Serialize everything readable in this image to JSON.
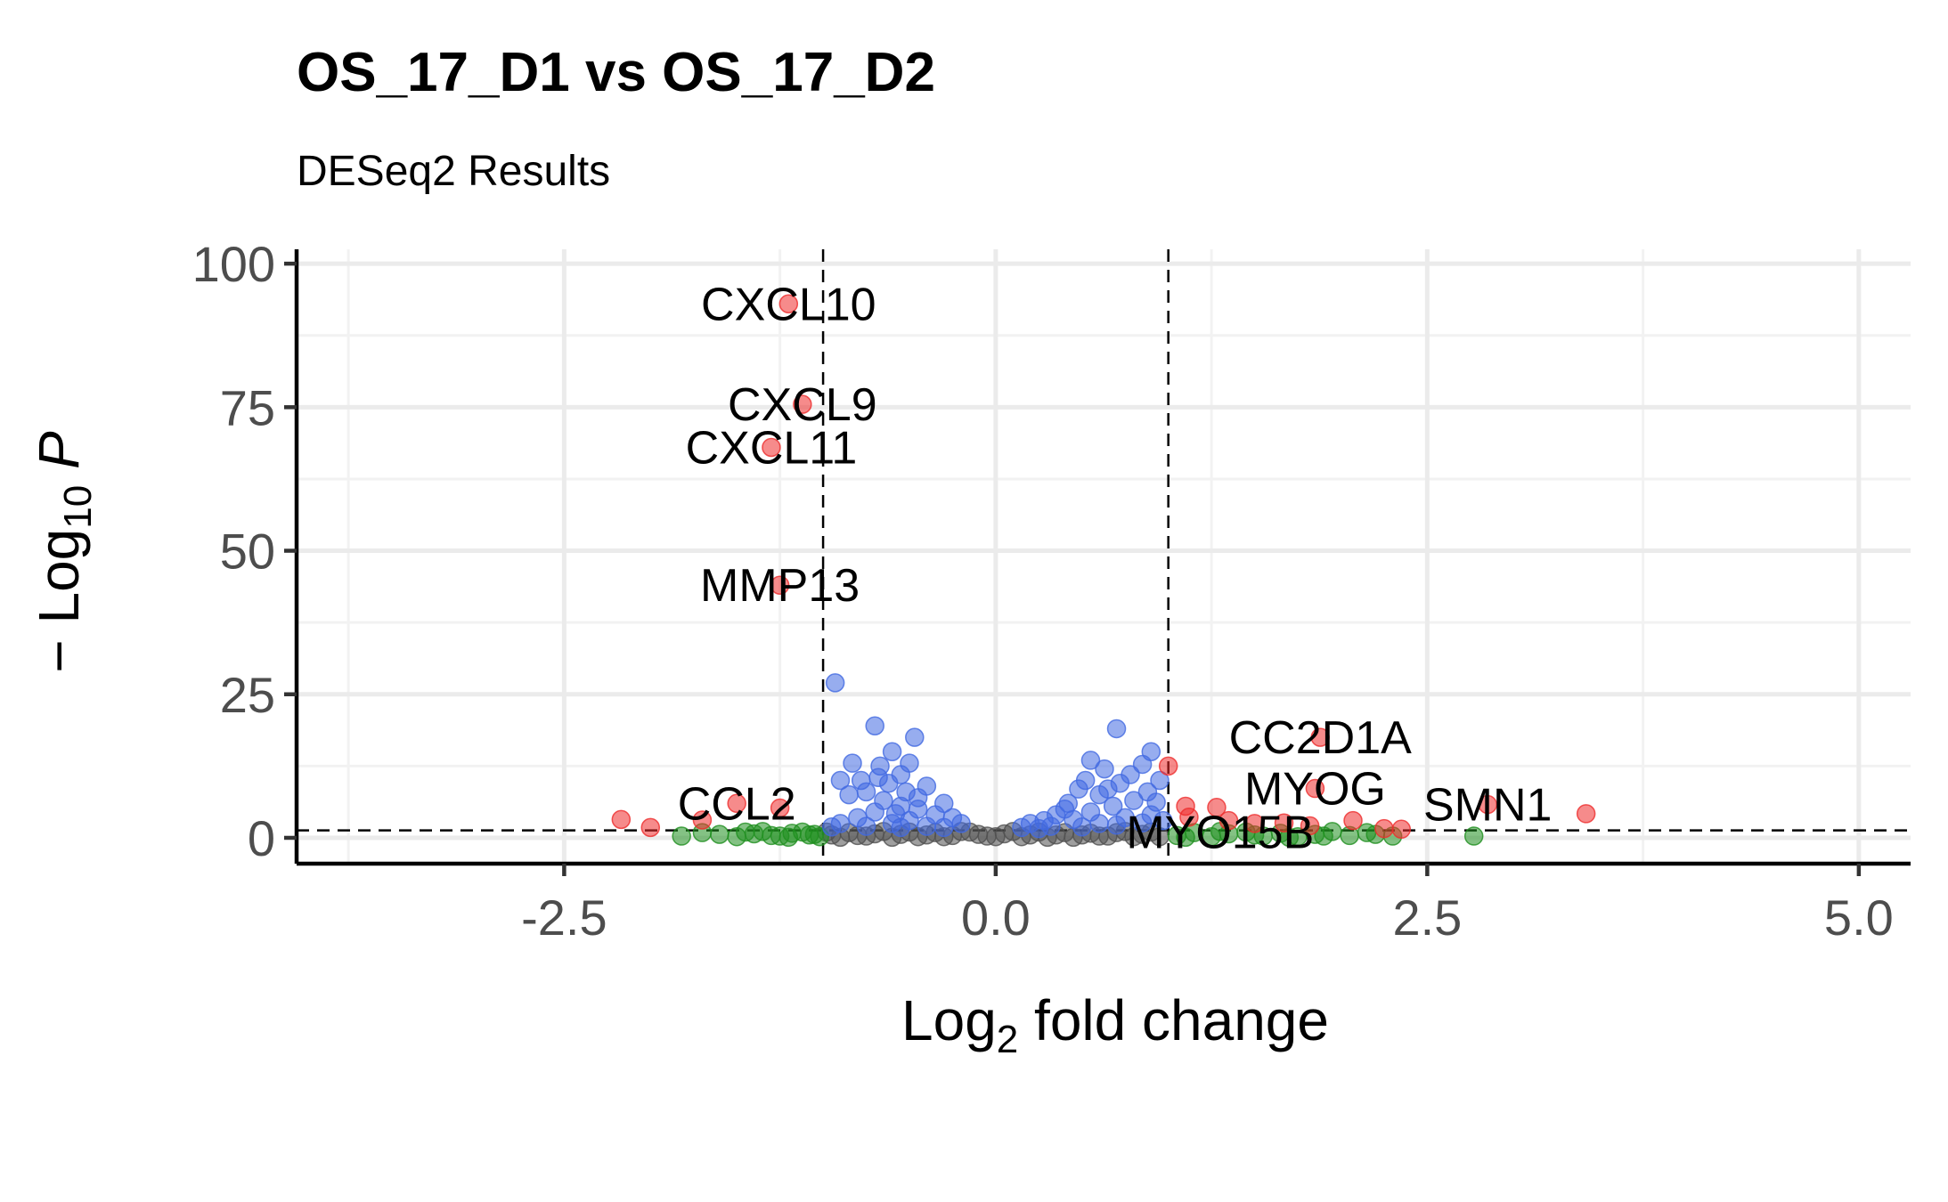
{
  "chart_data": {
    "type": "scatter",
    "title": "OS_17_D1 vs OS_17_D2",
    "subtitle": "DESeq2 Results",
    "xlabel": {
      "main": "Log",
      "sub": "2",
      "rest": " fold change"
    },
    "ylabel": {
      "prefix": "− Log",
      "sub": "10",
      "italic": " P"
    },
    "xlim": [
      -4.05,
      5.3
    ],
    "ylim": [
      -4.5,
      102.5
    ],
    "x_ticks": [
      -2.5,
      0.0,
      2.5,
      5.0
    ],
    "x_tick_labels": [
      "-2.5",
      "0.0",
      "2.5",
      "5.0"
    ],
    "x_minor": [
      -3.75,
      -1.25,
      1.25,
      3.75
    ],
    "y_ticks": [
      0,
      25,
      50,
      75,
      100
    ],
    "y_tick_labels": [
      "0",
      "25",
      "50",
      "75",
      "100"
    ],
    "y_minor": [
      12.5,
      37.5,
      62.5,
      87.5
    ],
    "fc_cutoffs": [
      -1,
      1
    ],
    "p_cutoff": 1.3,
    "grid": true,
    "legend": "none",
    "colors": {
      "NS": "#505050",
      "log2FC": "#1f8f1f",
      "p-value": "#4169e1",
      "p-value and log2FC": "#ee2c2c"
    },
    "series": [
      {
        "key": "p-value and log2FC",
        "points": [
          [
            -1.2,
            93
          ],
          [
            -1.12,
            75.5
          ],
          [
            -1.3,
            68
          ],
          [
            -1.25,
            44
          ],
          [
            -2.17,
            3.2
          ],
          [
            -2.0,
            1.8
          ],
          [
            -1.5,
            6
          ],
          [
            -1.25,
            5.2
          ],
          [
            -1.7,
            3.1
          ],
          [
            1.0,
            12.5
          ],
          [
            1.88,
            17.5
          ],
          [
            1.85,
            8.6
          ],
          [
            2.85,
            5.8
          ],
          [
            3.42,
            4.2
          ],
          [
            2.35,
            1.5
          ],
          [
            2.07,
            3.0
          ],
          [
            1.1,
            5.5
          ],
          [
            1.28,
            5.3
          ],
          [
            1.5,
            2.5
          ],
          [
            1.82,
            2.1
          ],
          [
            1.67,
            2.6
          ],
          [
            1.35,
            3.0
          ],
          [
            2.25,
            1.6
          ],
          [
            1.12,
            3.6
          ]
        ]
      },
      {
        "key": "p-value",
        "points": [
          [
            -0.93,
            27
          ],
          [
            -0.7,
            19.5
          ],
          [
            -0.47,
            17.5
          ],
          [
            -0.83,
            13
          ],
          [
            -0.6,
            15
          ],
          [
            -0.5,
            13
          ],
          [
            -0.9,
            10
          ],
          [
            -0.67,
            12.5
          ],
          [
            -0.55,
            11
          ],
          [
            -0.75,
            8
          ],
          [
            -0.4,
            9
          ],
          [
            -0.62,
            9.5
          ],
          [
            -0.85,
            7.5
          ],
          [
            -0.45,
            7
          ],
          [
            -0.65,
            6.5
          ],
          [
            -0.3,
            6
          ],
          [
            -0.55,
            5.5
          ],
          [
            -0.7,
            4.5
          ],
          [
            -0.35,
            4
          ],
          [
            -0.8,
            3.5
          ],
          [
            -0.5,
            3
          ],
          [
            -0.25,
            3.5
          ],
          [
            -0.6,
            2.5
          ],
          [
            -0.9,
            2.5
          ],
          [
            -0.4,
            2
          ],
          [
            -0.2,
            2.5
          ],
          [
            -0.75,
            2
          ],
          [
            -0.3,
            1.8
          ],
          [
            -0.55,
            1.8
          ],
          [
            -0.95,
            1.9
          ],
          [
            -0.45,
            5
          ],
          [
            -0.52,
            8
          ],
          [
            -0.58,
            4.2
          ],
          [
            -0.68,
            10.5
          ],
          [
            -0.78,
            10
          ],
          [
            0.7,
            19
          ],
          [
            0.9,
            15
          ],
          [
            0.55,
            13.5
          ],
          [
            0.63,
            12
          ],
          [
            0.78,
            11
          ],
          [
            0.85,
            12.8
          ],
          [
            0.95,
            10
          ],
          [
            0.52,
            10
          ],
          [
            0.72,
            9.5
          ],
          [
            0.88,
            8
          ],
          [
            0.6,
            7.5
          ],
          [
            0.48,
            8.5
          ],
          [
            0.8,
            6.5
          ],
          [
            0.93,
            6.2
          ],
          [
            0.4,
            5
          ],
          [
            0.68,
            5.5
          ],
          [
            0.35,
            4
          ],
          [
            0.55,
            4.5
          ],
          [
            0.75,
            3.5
          ],
          [
            0.28,
            3
          ],
          [
            0.45,
            3.2
          ],
          [
            0.9,
            4
          ],
          [
            0.2,
            2.5
          ],
          [
            0.6,
            2.5
          ],
          [
            0.32,
            2
          ],
          [
            0.7,
            2.2
          ],
          [
            0.15,
            1.8
          ],
          [
            0.5,
            1.9
          ],
          [
            0.85,
            2.6
          ],
          [
            0.25,
            1.6
          ],
          [
            0.97,
            3
          ],
          [
            0.42,
            6
          ],
          [
            0.65,
            8.5
          ]
        ]
      },
      {
        "key": "log2FC",
        "points": [
          [
            -1.82,
            0.3
          ],
          [
            -1.6,
            0.6
          ],
          [
            -1.45,
            1.0
          ],
          [
            -1.3,
            0.4
          ],
          [
            -1.18,
            0.8
          ],
          [
            -1.08,
            0.5
          ],
          [
            -1.5,
            0.2
          ],
          [
            -1.35,
            1.1
          ],
          [
            -1.25,
            0.3
          ],
          [
            -1.12,
            1.0
          ],
          [
            -1.02,
            0.2
          ],
          [
            -1.7,
            0.9
          ],
          [
            -1.4,
            0.7
          ],
          [
            -1.05,
            0.6
          ],
          [
            -1.2,
            0.1
          ],
          [
            1.05,
            0.4
          ],
          [
            1.15,
            0.9
          ],
          [
            1.25,
            0.2
          ],
          [
            1.35,
            0.7
          ],
          [
            1.45,
            1.0
          ],
          [
            1.55,
            0.3
          ],
          [
            1.65,
            0.8
          ],
          [
            1.75,
            0.2
          ],
          [
            1.85,
            0.6
          ],
          [
            1.95,
            1.1
          ],
          [
            2.05,
            0.4
          ],
          [
            2.15,
            0.9
          ],
          [
            2.3,
            0.3
          ],
          [
            2.77,
            0.3
          ],
          [
            1.1,
            0.1
          ],
          [
            1.3,
            1.1
          ],
          [
            1.5,
            0.5
          ],
          [
            1.7,
            0.1
          ],
          [
            1.9,
            0.3
          ],
          [
            2.2,
            0.6
          ]
        ]
      },
      {
        "key": "NS",
        "points": [
          [
            -0.95,
            0.5
          ],
          [
            -0.85,
            0.9
          ],
          [
            -0.75,
            0.3
          ],
          [
            -0.65,
            1.1
          ],
          [
            -0.55,
            0.6
          ],
          [
            -0.45,
            0.2
          ],
          [
            -0.35,
            0.9
          ],
          [
            -0.25,
            0.4
          ],
          [
            -0.15,
            1.0
          ],
          [
            -0.05,
            0.3
          ],
          [
            0.05,
            0.7
          ],
          [
            0.15,
            0.2
          ],
          [
            0.25,
            1.0
          ],
          [
            0.35,
            0.5
          ],
          [
            0.45,
            0.1
          ],
          [
            0.55,
            0.8
          ],
          [
            0.65,
            0.3
          ],
          [
            0.75,
            1.1
          ],
          [
            0.85,
            0.6
          ],
          [
            0.95,
            0.2
          ],
          [
            -0.9,
            0.1
          ],
          [
            -0.7,
            0.7
          ],
          [
            -0.5,
            1.0
          ],
          [
            -0.3,
            0.2
          ],
          [
            -0.1,
            0.6
          ],
          [
            0.1,
            1.1
          ],
          [
            0.3,
            0.1
          ],
          [
            0.5,
            0.5
          ],
          [
            0.7,
            0.9
          ],
          [
            0.9,
            1.0
          ],
          [
            -0.8,
            0.4
          ],
          [
            -0.6,
            0.1
          ],
          [
            -0.4,
            0.5
          ],
          [
            -0.2,
            1.1
          ],
          [
            0.0,
            0.2
          ],
          [
            0.2,
            0.5
          ],
          [
            0.4,
            0.9
          ],
          [
            0.6,
            0.3
          ],
          [
            0.8,
            0.2
          ],
          [
            -0.98,
            1.0
          ]
        ]
      }
    ],
    "labels": [
      {
        "text": "CXCL10",
        "x": -1.2,
        "y": 93
      },
      {
        "text": "CXCL9",
        "x": -1.12,
        "y": 75.5
      },
      {
        "text": "CXCL11",
        "x": -1.3,
        "y": 68
      },
      {
        "text": "MMP13",
        "x": -1.25,
        "y": 44
      },
      {
        "text": "CCL2",
        "x": -1.5,
        "y": 6
      },
      {
        "text": "CC2D1A",
        "x": 1.88,
        "y": 17.5
      },
      {
        "text": "MYOG",
        "x": 1.85,
        "y": 8.6
      },
      {
        "text": "SMN1",
        "x": 2.85,
        "y": 5.8
      },
      {
        "text": "MYO15B",
        "x": 1.3,
        "y": 1.0
      }
    ]
  }
}
